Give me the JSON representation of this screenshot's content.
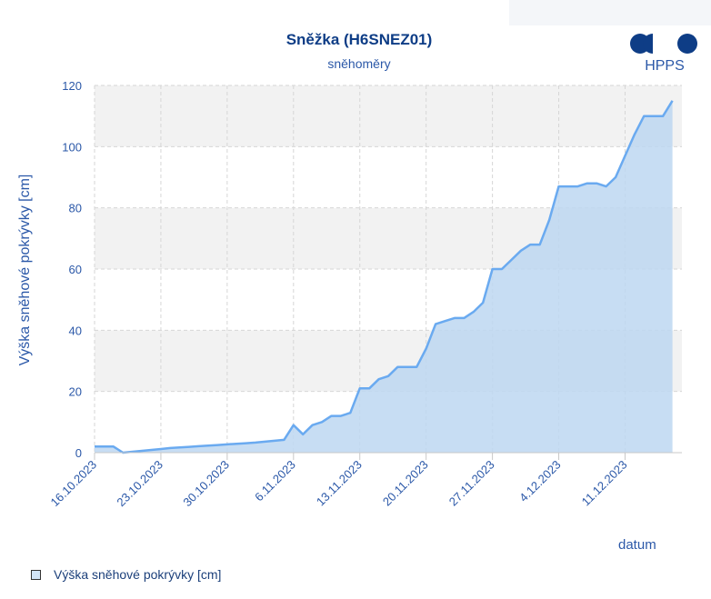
{
  "chart_data": {
    "type": "area",
    "title": "Sněžka (H6SNEZ01)",
    "subtitle": "sněhoměry",
    "xlabel": "datum",
    "ylabel": "Výška sněhové pokrývky [cm]",
    "ylim": [
      0,
      120
    ],
    "yticks": [
      "0",
      "20",
      "40",
      "60",
      "80",
      "100",
      "120"
    ],
    "xlim": [
      "2023-10-16",
      "2023-12-17"
    ],
    "xticks": [
      {
        "date": "2023-10-16",
        "label": "16.10.2023"
      },
      {
        "date": "2023-10-23",
        "label": "23.10.2023"
      },
      {
        "date": "2023-10-30",
        "label": "30.10.2023"
      },
      {
        "date": "2023-11-06",
        "label": "6.11.2023"
      },
      {
        "date": "2023-11-13",
        "label": "13.11.2023"
      },
      {
        "date": "2023-11-20",
        "label": "20.11.2023"
      },
      {
        "date": "2023-11-27",
        "label": "27.11.2023"
      },
      {
        "date": "2023-12-04",
        "label": "4.12.2023"
      },
      {
        "date": "2023-12-11",
        "label": "11.12.2023"
      }
    ],
    "grid": true,
    "legend_position": "bottom-left",
    "series": [
      {
        "name": "Výška sněhové pokrývky [cm]",
        "line_color": "#6aaaf0",
        "fill_color": "#bdd7f1",
        "points": [
          [
            "2023-10-16",
            2
          ],
          [
            "2023-10-17",
            2
          ],
          [
            "2023-10-18",
            2
          ],
          [
            "2023-10-19",
            0
          ],
          [
            "2023-10-20",
            0.3
          ],
          [
            "2023-10-21",
            0.6
          ],
          [
            "2023-10-22",
            0.9
          ],
          [
            "2023-10-23",
            1.2
          ],
          [
            "2023-10-24",
            1.5
          ],
          [
            "2023-10-25",
            1.7
          ],
          [
            "2023-10-26",
            1.9
          ],
          [
            "2023-10-27",
            2.1
          ],
          [
            "2023-10-28",
            2.3
          ],
          [
            "2023-10-29",
            2.5
          ],
          [
            "2023-10-30",
            2.7
          ],
          [
            "2023-10-31",
            2.9
          ],
          [
            "2023-11-01",
            3.1
          ],
          [
            "2023-11-02",
            3.3
          ],
          [
            "2023-11-03",
            3.6
          ],
          [
            "2023-11-04",
            3.9
          ],
          [
            "2023-11-05",
            4.2
          ],
          [
            "2023-11-06",
            9
          ],
          [
            "2023-11-07",
            6
          ],
          [
            "2023-11-08",
            9
          ],
          [
            "2023-11-09",
            10
          ],
          [
            "2023-11-10",
            12
          ],
          [
            "2023-11-11",
            12
          ],
          [
            "2023-11-12",
            13
          ],
          [
            "2023-11-13",
            21
          ],
          [
            "2023-11-14",
            21
          ],
          [
            "2023-11-15",
            24
          ],
          [
            "2023-11-16",
            25
          ],
          [
            "2023-11-17",
            28
          ],
          [
            "2023-11-18",
            28
          ],
          [
            "2023-11-19",
            28
          ],
          [
            "2023-11-20",
            34
          ],
          [
            "2023-11-21",
            42
          ],
          [
            "2023-11-22",
            43
          ],
          [
            "2023-11-23",
            44
          ],
          [
            "2023-11-24",
            44
          ],
          [
            "2023-11-25",
            46
          ],
          [
            "2023-11-26",
            49
          ],
          [
            "2023-11-27",
            60
          ],
          [
            "2023-11-28",
            60
          ],
          [
            "2023-11-29",
            63
          ],
          [
            "2023-11-30",
            66
          ],
          [
            "2023-12-01",
            68
          ],
          [
            "2023-12-02",
            68
          ],
          [
            "2023-12-03",
            76
          ],
          [
            "2023-12-04",
            87
          ],
          [
            "2023-12-05",
            87
          ],
          [
            "2023-12-06",
            87
          ],
          [
            "2023-12-07",
            88
          ],
          [
            "2023-12-08",
            88
          ],
          [
            "2023-12-09",
            87
          ],
          [
            "2023-12-10",
            90
          ],
          [
            "2023-12-11",
            97
          ],
          [
            "2023-12-12",
            104
          ],
          [
            "2023-12-13",
            110
          ],
          [
            "2023-12-14",
            110
          ],
          [
            "2023-12-15",
            110
          ],
          [
            "2023-12-16",
            115
          ]
        ]
      }
    ]
  },
  "logo": {
    "text": "HPPS",
    "color": "#0e3d86"
  }
}
